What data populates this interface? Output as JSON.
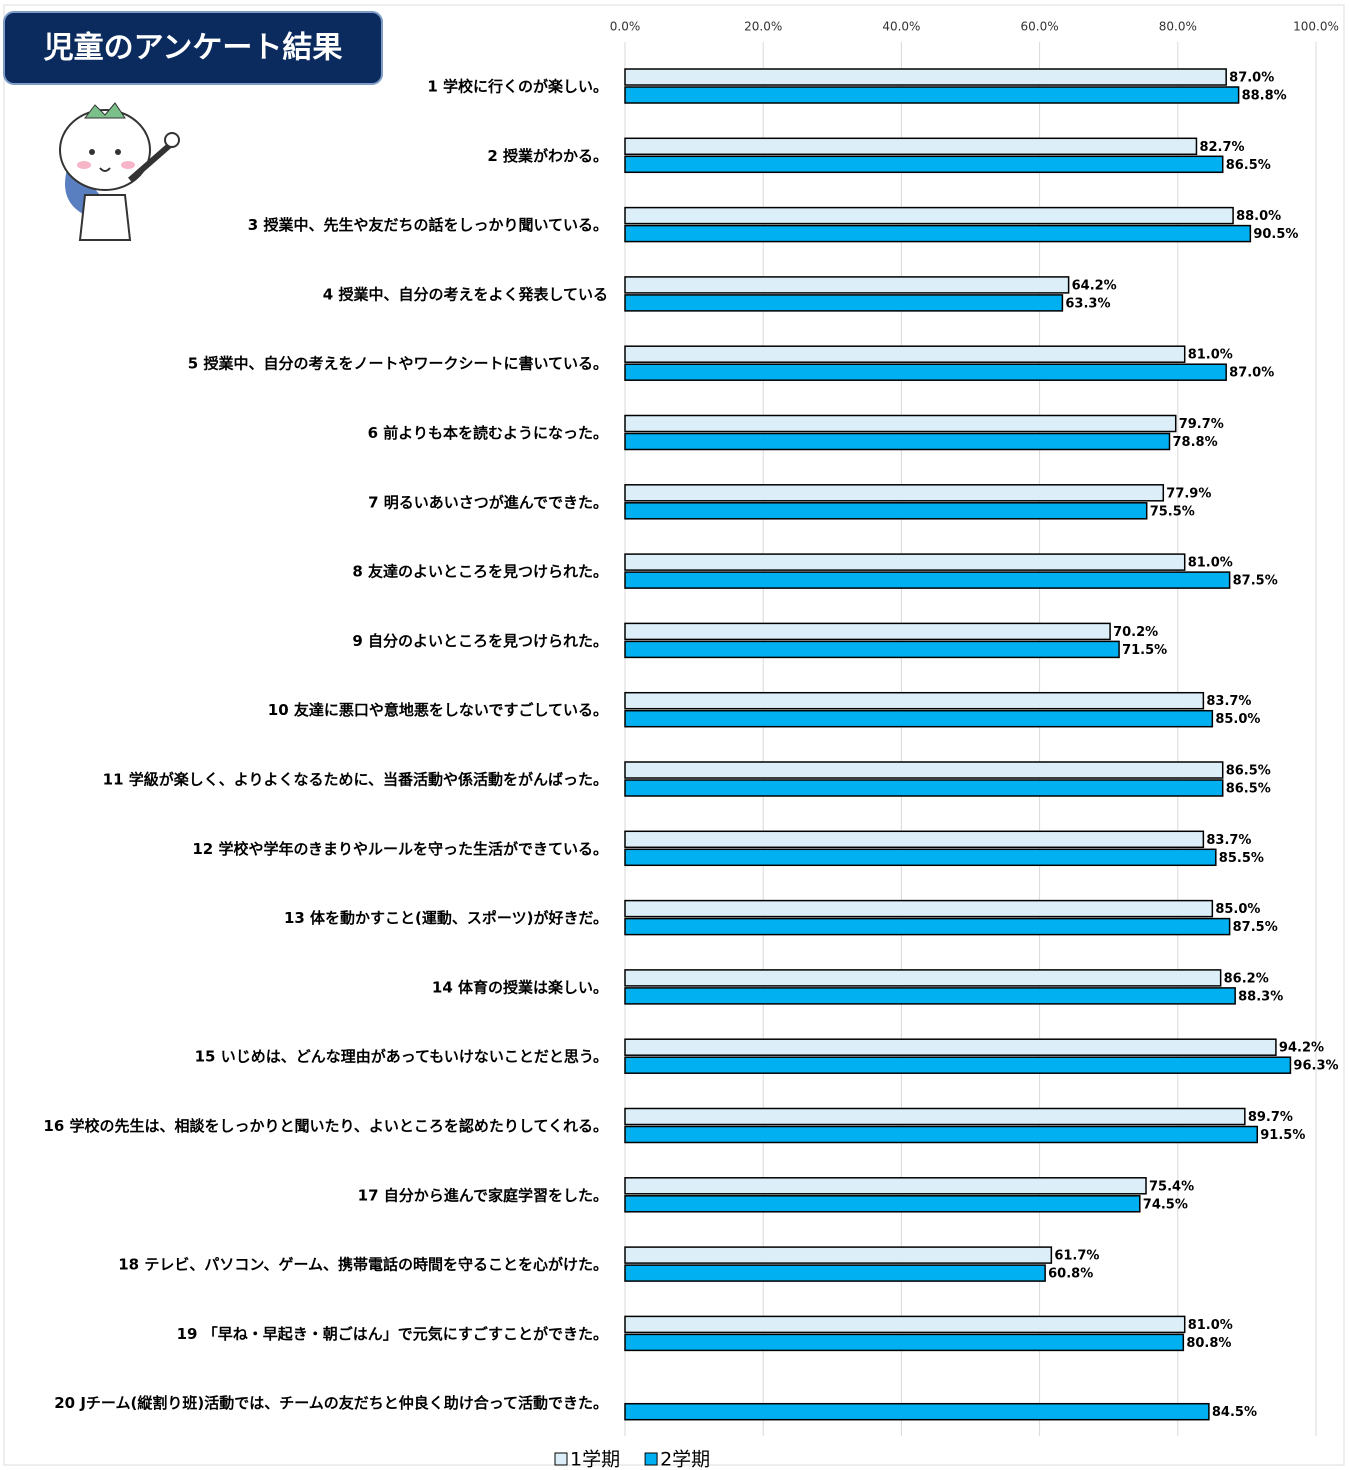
{
  "chart_data": {
    "type": "bar",
    "orientation": "horizontal",
    "title": "児童のアンケート結果",
    "categories": [
      "1 学校に行くのが楽しい。",
      "2 授業がわかる。",
      "3 授業中、先生や友だちの話をしっかり聞いている。",
      "4 授業中、自分の考えをよく発表している",
      "5 授業中、自分の考えをノートやワークシートに書いている。",
      "6 前よりも本を読むようになった。",
      "7 明るいあいさつが進んでできた。",
      "8 友達のよいところを見つけられた。",
      "9 自分のよいところを見つけられた。",
      "10 友達に悪口や意地悪をしないですごしている。",
      "11 学級が楽しく、よりよくなるために、当番活動や係活動をがんばった。",
      "12 学校や学年のきまりやルールを守った生活ができている。",
      "13 体を動かすこと(運動、スポーツ)が好きだ。",
      "14 体育の授業は楽しい。",
      "15 いじめは、どんな理由があってもいけないことだと思う。",
      "16 学校の先生は、相談をしっかりと聞いたり、よいところを認めたりしてくれる。",
      "17 自分から進んで家庭学習をした。",
      "18 テレビ、パソコン、ゲーム、携帯電話の時間を守ることを心がけた。",
      "19 「早ね・早起き・朝ごはん」で元気にすごすことができた。",
      "20 Jチーム(縦割り班)活動では、チームの友だちと仲良く助け合って活動できた。"
    ],
    "series": [
      {
        "name": "1学期",
        "color": "#dceff8",
        "values": [
          87.0,
          82.7,
          88.0,
          64.2,
          81.0,
          79.7,
          77.9,
          81.0,
          70.2,
          83.7,
          86.5,
          83.7,
          85.0,
          86.2,
          94.2,
          89.7,
          75.4,
          61.7,
          81.0,
          null
        ],
        "value_labels": [
          "87.0%",
          "82.7%",
          "88.0%",
          "64.2%",
          "81.0%",
          "79.7%",
          "77.9%",
          "81.0%",
          "70.2%",
          "83.7%",
          "86.5%",
          "83.7%",
          "85.0%",
          "86.2%",
          "94.2%",
          "89.7%",
          "75.4%",
          "61.7%",
          "81.0%",
          null
        ]
      },
      {
        "name": "2学期",
        "color": "#00b0f0",
        "values": [
          88.8,
          86.5,
          90.5,
          63.3,
          87.0,
          78.8,
          75.5,
          87.5,
          71.5,
          85.0,
          86.5,
          85.5,
          87.5,
          88.3,
          96.3,
          91.5,
          74.5,
          60.8,
          80.8,
          84.5
        ],
        "value_labels": [
          "88.8%",
          "86.5%",
          "90.5%",
          "63.3%",
          "87.0%",
          "78.8%",
          "75.5%",
          "87.5%",
          "71.5%",
          "85.0%",
          "86.5%",
          "85.5%",
          "87.5%",
          "88.3%",
          "96.3%",
          "91.5%",
          "74.5%",
          "60.8%",
          "80.8%",
          "84.5%"
        ]
      }
    ],
    "xlim": [
      0,
      100
    ],
    "xticks": [
      {
        "value": 0,
        "label": "0.0%"
      },
      {
        "value": 20,
        "label": "20.0%"
      },
      {
        "value": 40,
        "label": "40.0%"
      },
      {
        "value": 60,
        "label": "60.0%"
      },
      {
        "value": 80,
        "label": "80.0%"
      },
      {
        "value": 100,
        "label": "100.0%"
      }
    ],
    "grid": true,
    "legend": "bottom"
  }
}
